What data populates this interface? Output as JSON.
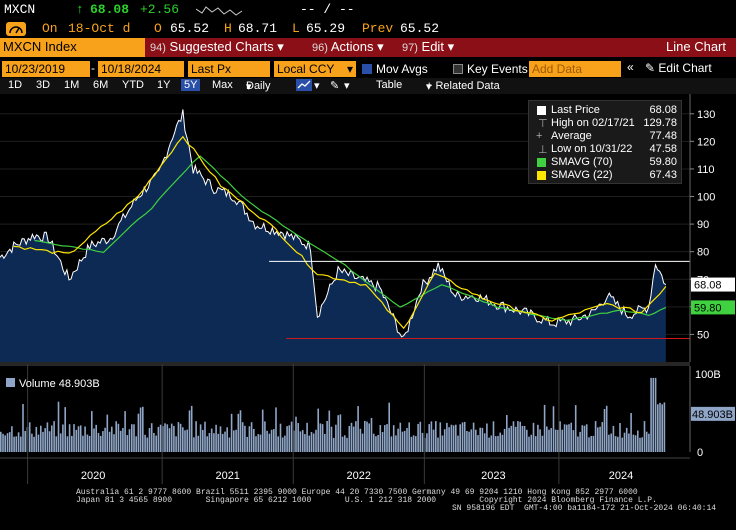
{
  "header": {
    "ticker": "MXCN",
    "arrow": "↑",
    "last": "68.08",
    "change": "+2.56",
    "dashes": "-- / --"
  },
  "quote": {
    "on_label": "On",
    "date": "18-Oct d",
    "open_label": "O",
    "open": "65.52",
    "high_label": "H",
    "high": "68.71",
    "low_label": "L",
    "low": "65.29",
    "prev_label": "Prev",
    "prev": "65.52"
  },
  "menubar": {
    "security": "MXCN Index",
    "suggested_num": "94)",
    "suggested": "Suggested Charts",
    "actions_num": "96)",
    "actions": "Actions",
    "edit_num": "97)",
    "edit": "Edit",
    "chart_type": "Line Chart"
  },
  "params": {
    "start_date": "10/23/2019",
    "end_date": "10/18/2024",
    "field": "Last Px",
    "currency": "Local CCY",
    "mov_avgs": "Mov Avgs",
    "key_events": "Key Events",
    "add_data": "Add Data",
    "edit_chart": "Edit Chart"
  },
  "toolbar": {
    "periods": [
      "1D",
      "3D",
      "1M",
      "6M",
      "YTD",
      "1Y",
      "5Y",
      "Max"
    ],
    "active_period": "5Y",
    "frequency": "Daily",
    "table": "Table",
    "related": "+ Related Data"
  },
  "legend": {
    "last_price_label": "Last Price",
    "last_price": "68.08",
    "high_label": "High on 02/17/21",
    "high": "129.78",
    "avg_label": "Average",
    "avg": "77.48",
    "low_label": "Low on 10/31/22",
    "low": "47.58",
    "sma70_label": "SMAVG (70)",
    "sma70": "59.80",
    "sma22_label": "SMAVG (22)",
    "sma22": "67.43"
  },
  "volume": {
    "label": "Volume",
    "value": "48.903B",
    "axis_top": "100B",
    "axis_zero": "0"
  },
  "colors": {
    "orange": "#f7a21a",
    "menu_red": "#8b0f16",
    "price_fill": "#0d2a55",
    "sma70": "#3fd13f",
    "sma22": "#ffe600"
  },
  "chart_data": {
    "type": "area",
    "x_labels": [
      "2020",
      "2021",
      "2022",
      "2023",
      "2024"
    ],
    "y_ticks": [
      50,
      60,
      70,
      80,
      90,
      100,
      110,
      120,
      130
    ],
    "ylim": [
      40,
      135
    ],
    "price_points": [
      [
        0,
        78
      ],
      [
        0.02,
        82
      ],
      [
        0.05,
        86
      ],
      [
        0.07,
        85
      ],
      [
        0.1,
        70
      ],
      [
        0.13,
        82
      ],
      [
        0.16,
        85
      ],
      [
        0.2,
        100
      ],
      [
        0.23,
        108
      ],
      [
        0.25,
        122
      ],
      [
        0.265,
        129.78
      ],
      [
        0.28,
        110
      ],
      [
        0.31,
        103
      ],
      [
        0.34,
        100
      ],
      [
        0.37,
        90
      ],
      [
        0.41,
        87
      ],
      [
        0.45,
        82
      ],
      [
        0.46,
        57
      ],
      [
        0.49,
        73
      ],
      [
        0.52,
        70
      ],
      [
        0.55,
        67
      ],
      [
        0.57,
        56
      ],
      [
        0.585,
        47.58
      ],
      [
        0.61,
        67
      ],
      [
        0.635,
        75
      ],
      [
        0.66,
        64
      ],
      [
        0.69,
        64
      ],
      [
        0.72,
        61
      ],
      [
        0.76,
        58
      ],
      [
        0.8,
        54
      ],
      [
        0.83,
        55
      ],
      [
        0.86,
        58
      ],
      [
        0.88,
        64
      ],
      [
        0.91,
        57
      ],
      [
        0.94,
        60
      ],
      [
        0.95,
        76
      ],
      [
        0.965,
        68.08
      ]
    ],
    "sma70_points": [
      [
        0.05,
        84
      ],
      [
        0.15,
        80
      ],
      [
        0.22,
        96
      ],
      [
        0.29,
        115
      ],
      [
        0.36,
        98
      ],
      [
        0.42,
        88
      ],
      [
        0.5,
        75
      ],
      [
        0.58,
        60
      ],
      [
        0.64,
        68
      ],
      [
        0.72,
        60
      ],
      [
        0.82,
        55
      ],
      [
        0.9,
        59
      ],
      [
        0.94,
        57
      ],
      [
        0.965,
        59.8
      ]
    ],
    "sma22_points": [
      [
        0.02,
        82
      ],
      [
        0.1,
        79
      ],
      [
        0.2,
        100
      ],
      [
        0.265,
        122
      ],
      [
        0.32,
        104
      ],
      [
        0.4,
        88
      ],
      [
        0.46,
        72
      ],
      [
        0.53,
        68
      ],
      [
        0.585,
        52
      ],
      [
        0.63,
        72
      ],
      [
        0.7,
        63
      ],
      [
        0.8,
        55
      ],
      [
        0.88,
        61
      ],
      [
        0.93,
        58
      ],
      [
        0.965,
        67.43
      ]
    ],
    "high_line": 76.5,
    "low_line": 48.5,
    "volume_ylim": [
      0,
      100
    ],
    "volume_ticks": [
      0,
      100
    ],
    "volume_last": 48.903
  }
}
